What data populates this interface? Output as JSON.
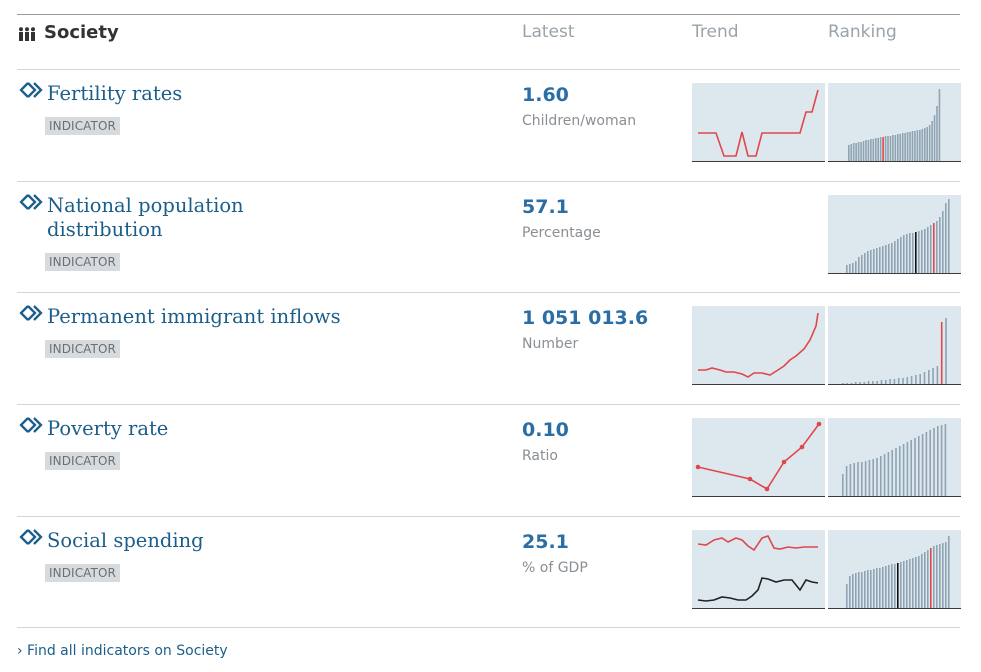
{
  "header": {
    "title": "Society",
    "icon": "people-icon",
    "columns": {
      "latest": "Latest",
      "trend": "Trend",
      "ranking": "Ranking"
    }
  },
  "rows": [
    {
      "title": "Fertility rates",
      "badge": "INDICATOR",
      "latest": "1.60",
      "unit": "Children/woman"
    },
    {
      "title": "National population distribution",
      "badge": "INDICATOR",
      "latest": "57.1",
      "unit": "Percentage"
    },
    {
      "title": "Permanent immigrant inflows",
      "badge": "INDICATOR",
      "latest": "1 051 013.6",
      "unit": "Number"
    },
    {
      "title": "Poverty rate",
      "badge": "INDICATOR",
      "latest": "0.10",
      "unit": "Ratio"
    },
    {
      "title": "Social spending",
      "badge": "INDICATOR",
      "latest": "25.1",
      "unit": "% of GDP"
    }
  ],
  "footer": {
    "link": "› Find all indicators on Society"
  },
  "colors": {
    "accent": "#1b5e8a",
    "highlight": "#e0474c",
    "bar": "#8fa3b2",
    "chart_bg": "#dde8ee"
  }
}
